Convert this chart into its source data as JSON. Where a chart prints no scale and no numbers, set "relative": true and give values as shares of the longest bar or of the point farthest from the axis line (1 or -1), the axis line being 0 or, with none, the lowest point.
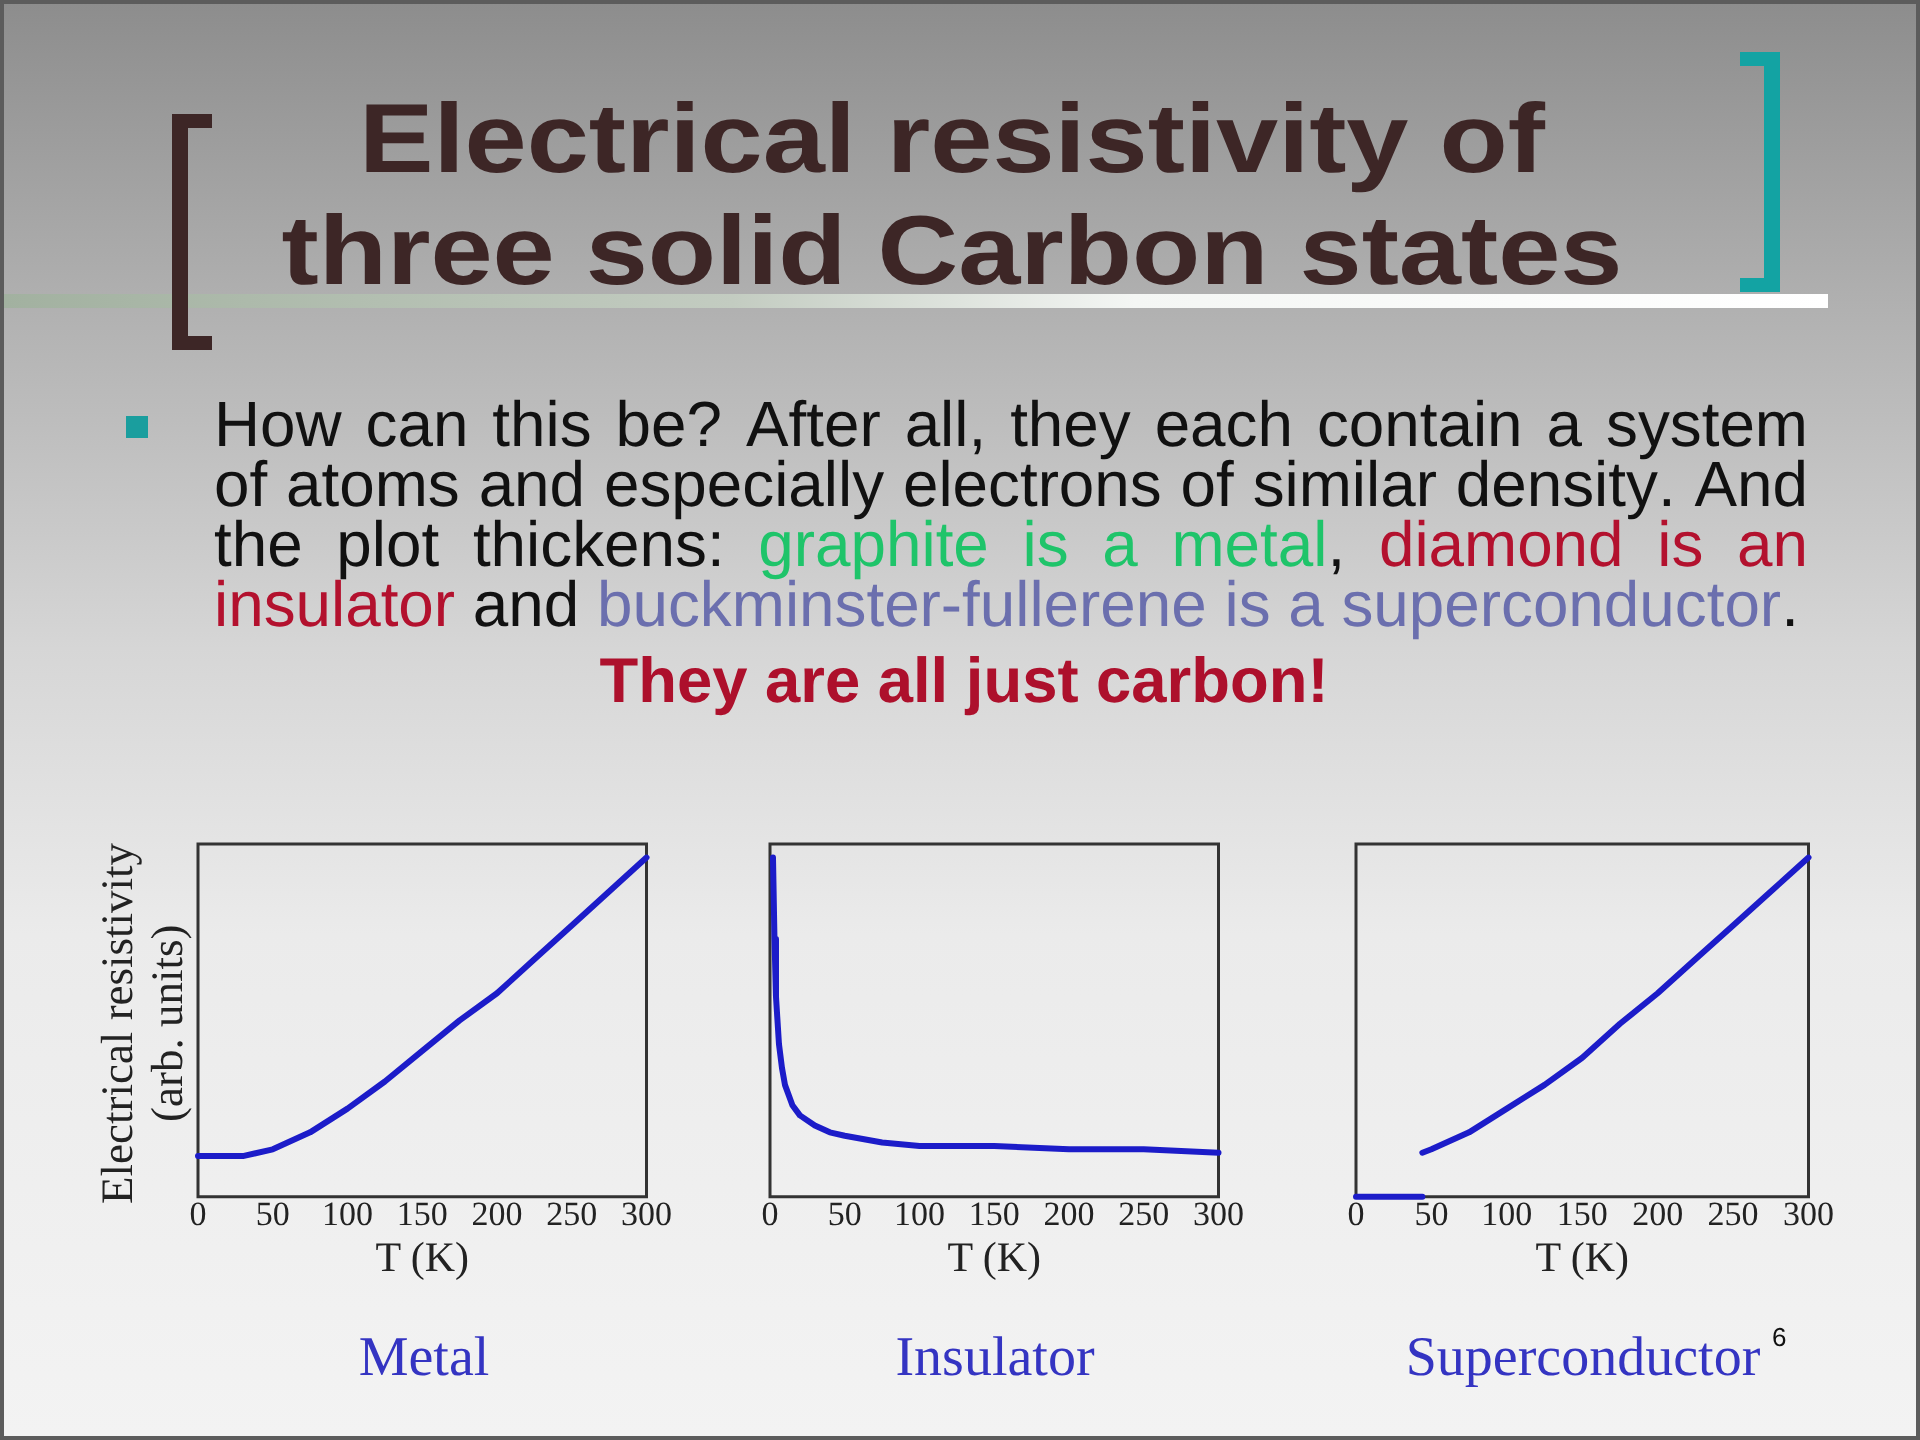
{
  "chart_data": [
    {
      "type": "other",
      "title": "Electrical resistivity of three solid Carbon states",
      "annotations": [
        "How can this be? After all, they each contain a system ",
        "of atoms and especially electrons of similar density. And ",
        "the plot thickens: ",
        "graphite is a metal",
        ", ",
        "diamond is an ",
        "insulator",
        " and ",
        "buckminster-fullerene is a superconductor",
        ".",
        "They are all just carbon!",
        "6"
      ]
    },
    {
      "type": "line",
      "title": "Metal",
      "xlabel": "T (K)",
      "ylabel": "Electrical resistivity (arb. units)",
      "relative": true,
      "color": "#1c1cc9",
      "x": [
        0,
        20,
        30,
        50,
        75,
        100,
        125,
        150,
        175,
        200,
        225,
        250,
        275,
        300
      ],
      "values": [
        0.12,
        0.12,
        0.12,
        0.14,
        0.19,
        0.26,
        0.34,
        0.43,
        0.52,
        0.6,
        0.7,
        0.8,
        0.9,
        1
      ],
      "xlim": [
        0,
        300
      ],
      "xticks": [
        0,
        50,
        100,
        150,
        200,
        250,
        300
      ]
    },
    {
      "type": "line",
      "title": "Insulator",
      "xlabel": "T (K)",
      "relative": true,
      "color": "#1c1cc9",
      "x": [
        2,
        3,
        4,
        6,
        8,
        10,
        15,
        20,
        30,
        40,
        50,
        75,
        100,
        150,
        200,
        250,
        300
      ],
      "values": [
        1,
        0.76,
        0.59,
        0.45,
        0.38,
        0.33,
        0.27,
        0.24,
        0.21,
        0.19,
        0.18,
        0.16,
        0.15,
        0.15,
        0.14,
        0.14,
        0.13
      ],
      "xlim": [
        0,
        300
      ],
      "xticks": [
        0,
        50,
        100,
        150,
        200,
        250,
        300
      ]
    },
    {
      "type": "line",
      "title": "Superconductor",
      "xlabel": "T (K)",
      "relative": true,
      "series": [
        {
          "color": "#1c1cc9",
          "x": [
            0,
            44
          ],
          "values": [
            0,
            0
          ]
        },
        {
          "color": "#1c1cc9",
          "x": [
            44,
            50,
            75,
            100,
            125,
            150,
            175,
            200,
            225,
            250,
            275,
            300
          ],
          "values": [
            0.13,
            0.14,
            0.19,
            0.26,
            0.33,
            0.41,
            0.51,
            0.6,
            0.7,
            0.8,
            0.9,
            1
          ]
        }
      ],
      "xlim": [
        0,
        300
      ],
      "xticks": [
        0,
        50,
        100,
        150,
        200,
        250,
        300
      ]
    }
  ]
}
